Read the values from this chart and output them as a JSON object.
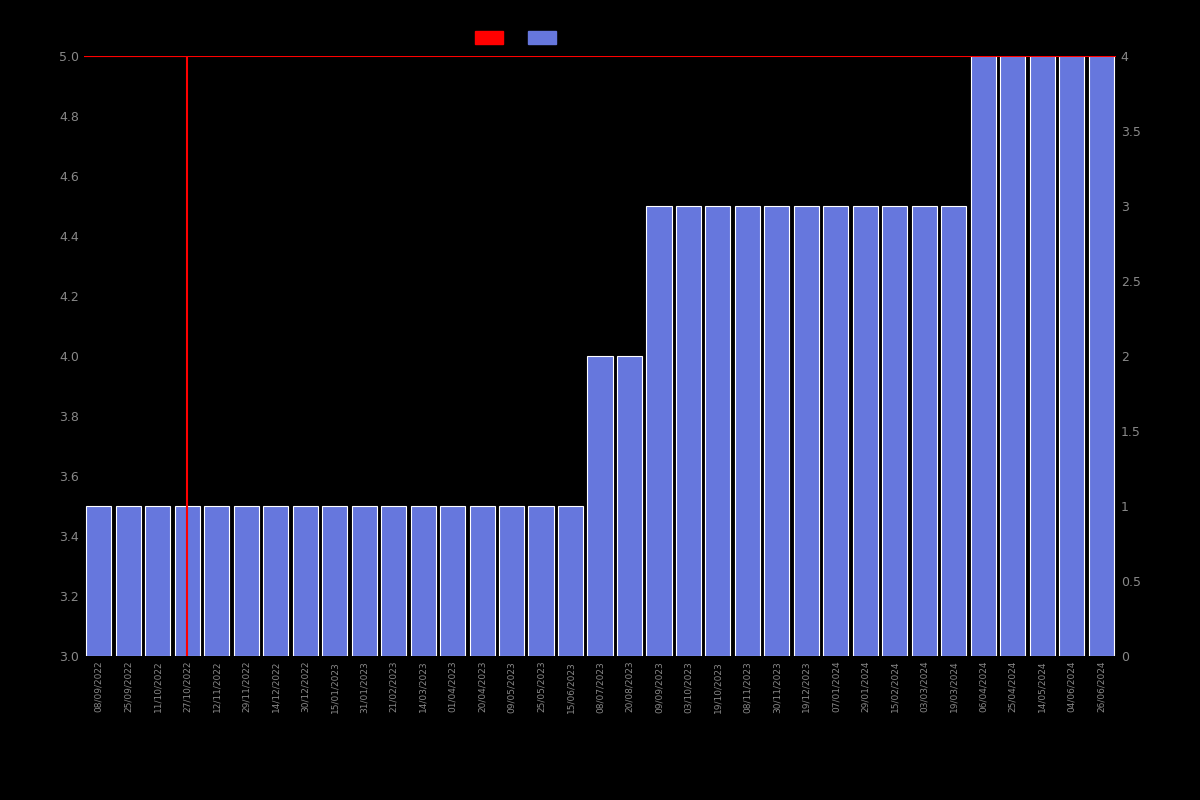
{
  "background_color": "#000000",
  "text_color": "#888888",
  "bar_color": "#6677DD",
  "bar_edgecolor": "#ffffff",
  "line_color": "#FF0000",
  "line_value": 5.0,
  "ylim_left": [
    3.0,
    5.0
  ],
  "ylim_right": [
    0.0,
    4.0
  ],
  "yticks_left": [
    3.0,
    3.2,
    3.4,
    3.6,
    3.8,
    4.0,
    4.2,
    4.4,
    4.6,
    4.8,
    5.0
  ],
  "yticks_right": [
    0,
    0.5,
    1.0,
    1.5,
    2.0,
    2.5,
    3.0,
    3.5,
    4.0
  ],
  "dates": [
    "08/09/2022",
    "25/09/2022",
    "11/10/2022",
    "27/10/2022",
    "12/11/2022",
    "29/11/2022",
    "14/12/2022",
    "30/12/2022",
    "15/01/2023",
    "31/01/2023",
    "21/02/2023",
    "14/03/2023",
    "01/04/2023",
    "20/04/2023",
    "09/05/2023",
    "25/05/2023",
    "15/06/2023",
    "08/07/2023",
    "20/08/2023",
    "09/09/2023",
    "03/10/2023",
    "19/10/2023",
    "08/11/2023",
    "30/11/2023",
    "19/12/2023",
    "07/01/2024",
    "29/01/2024",
    "15/02/2024",
    "03/03/2024",
    "19/03/2024",
    "06/04/2024",
    "25/04/2024",
    "14/05/2024",
    "04/06/2024",
    "26/06/2024"
  ],
  "bar_heights": [
    3.5,
    3.5,
    3.5,
    3.5,
    3.5,
    3.5,
    3.5,
    3.5,
    3.5,
    3.5,
    3.5,
    3.5,
    3.5,
    3.5,
    3.5,
    3.5,
    3.5,
    4.0,
    4.0,
    4.5,
    4.5,
    4.5,
    4.5,
    4.5,
    4.5,
    4.5,
    4.5,
    4.5,
    4.5,
    4.5,
    5.0,
    5.0,
    5.0,
    5.0,
    5.0
  ],
  "red_line_x": [
    0,
    3,
    3
  ],
  "red_line_y": [
    5.0,
    5.0,
    3.5
  ],
  "figsize": [
    12.0,
    8.0
  ],
  "dpi": 100
}
